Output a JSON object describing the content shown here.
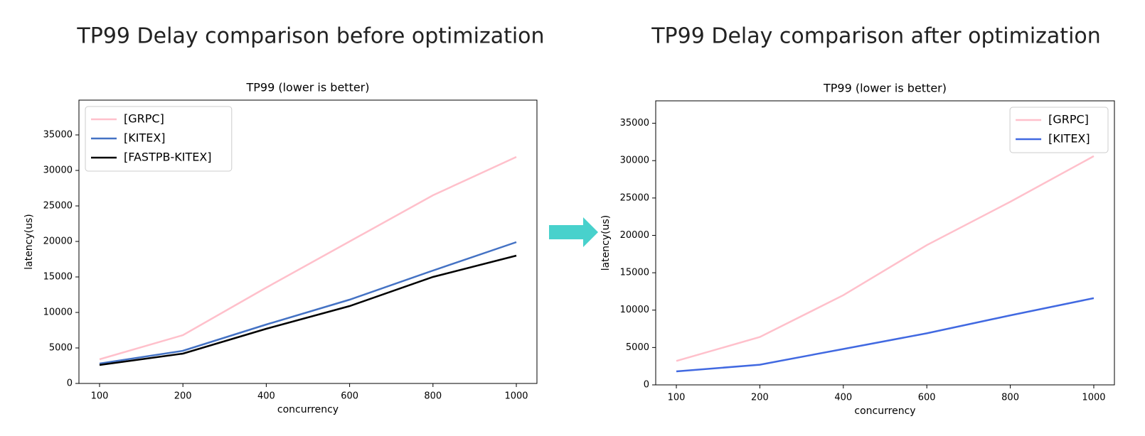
{
  "headings": [
    "TP99 Delay comparison before optimization",
    "TP99 Delay comparison after optimization"
  ],
  "chart_data": [
    {
      "type": "line",
      "title": "TP99 (lower is better)",
      "x_label": "concurrency",
      "y_label": "latency(us)",
      "categories": [
        "100",
        "200",
        "400",
        "600",
        "800",
        "1000"
      ],
      "ylim": [
        0,
        39900
      ],
      "yticks": [
        0,
        5000,
        10000,
        15000,
        20000,
        25000,
        30000,
        35000
      ],
      "legend": "upper left",
      "series": [
        {
          "name": "[GRPC]",
          "color": "#ffc0cb",
          "values": [
            3400,
            6800,
            13500,
            20000,
            26500,
            31900
          ]
        },
        {
          "name": "[KITEX]",
          "color": "#4472c4",
          "values": [
            2800,
            4600,
            8300,
            11800,
            15900,
            19900
          ]
        },
        {
          "name": "[FASTPB-KITEX]",
          "color": "#000000",
          "values": [
            2600,
            4200,
            7700,
            10900,
            15000,
            18000
          ]
        }
      ]
    },
    {
      "type": "line",
      "title": "TP99 (lower is better)",
      "x_label": "concurrency",
      "y_label": "latency(us)",
      "categories": [
        "100",
        "200",
        "400",
        "600",
        "800",
        "1000"
      ],
      "ylim": [
        0,
        38000
      ],
      "yticks": [
        0,
        5000,
        10000,
        15000,
        20000,
        25000,
        30000,
        35000
      ],
      "legend": "upper right",
      "series": [
        {
          "name": "[GRPC]",
          "color": "#ffc0cb",
          "values": [
            3200,
            6400,
            12000,
            18700,
            24500,
            30600
          ]
        },
        {
          "name": "[KITEX]",
          "color": "#4169e1",
          "values": [
            1800,
            2700,
            4800,
            6900,
            9300,
            11600
          ]
        }
      ]
    }
  ]
}
